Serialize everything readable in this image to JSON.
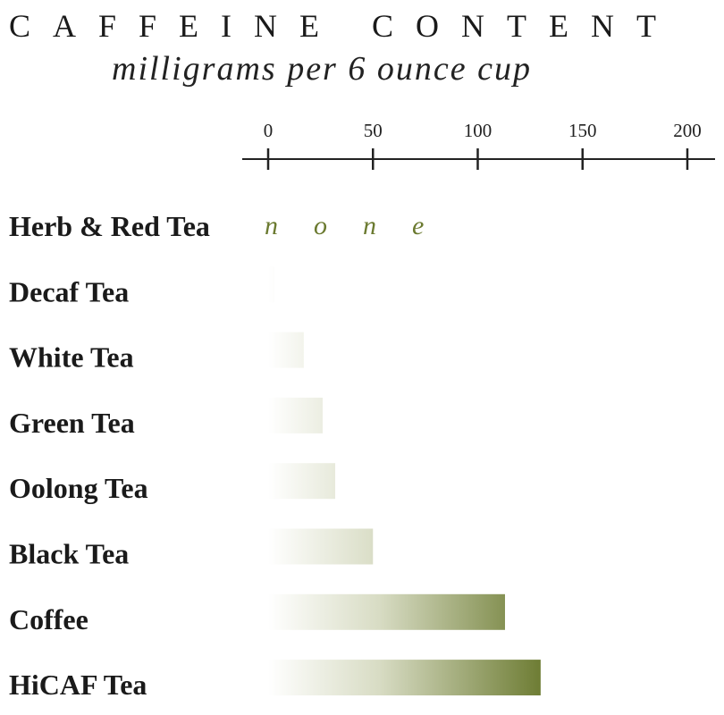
{
  "chart_data": {
    "type": "bar",
    "orientation": "horizontal",
    "title": "CAFFEINE CONTENT",
    "subtitle": "milligrams per 6 ounce cup",
    "categories": [
      "Herb & Red Tea",
      "Decaf Tea",
      "White Tea",
      "Green Tea",
      "Oolong Tea",
      "Black Tea",
      "Coffee",
      "HiCAF Tea"
    ],
    "values": [
      0,
      3,
      17,
      26,
      32,
      50,
      113,
      130
    ],
    "annotations": [
      {
        "category": "Herb & Red Tea",
        "text": "none"
      }
    ],
    "xlim": [
      0,
      200
    ],
    "xticks": [
      0,
      50,
      100,
      150,
      200
    ],
    "axis_position": "top",
    "grid": false,
    "colors": {
      "bar_start": "#ffffff",
      "bar_end": "#6b7a30",
      "text": "#1a1a1a",
      "annotation": "#6b7a30"
    }
  }
}
